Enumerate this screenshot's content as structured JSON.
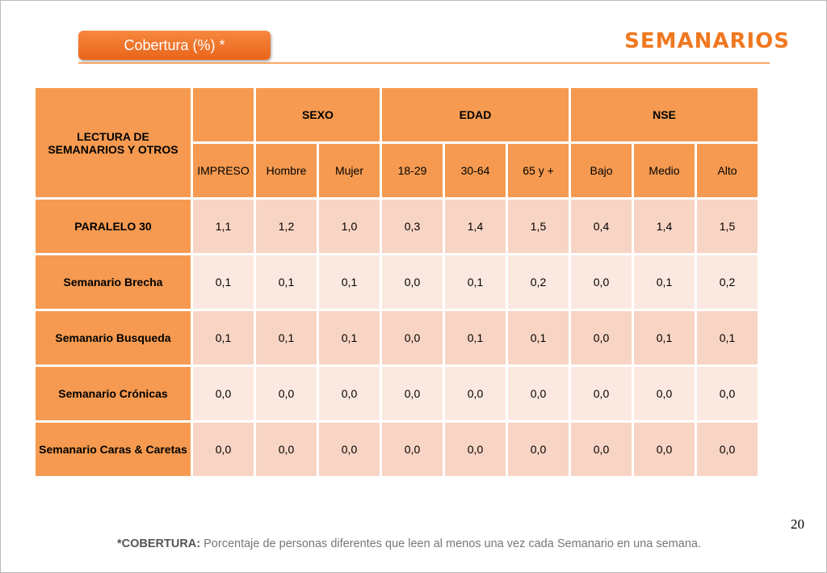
{
  "badge": "Cobertura (%) *",
  "title": "SEMANARIOS",
  "table": {
    "corner": "LECTURA DE SEMANARIOS Y OTROS",
    "groups": [
      "SEXO",
      "EDAD",
      "NSE"
    ],
    "columns": [
      "IMPRESO",
      "Hombre",
      "Mujer",
      "18-29",
      "30-64",
      "65 y +",
      "Bajo",
      "Medio",
      "Alto"
    ],
    "rows": [
      {
        "label": "PARALELO 30",
        "values": [
          "1,1",
          "1,2",
          "1,0",
          "0,3",
          "1,4",
          "1,5",
          "0,4",
          "1,4",
          "1,5"
        ]
      },
      {
        "label": "Semanario Brecha",
        "values": [
          "0,1",
          "0,1",
          "0,1",
          "0,0",
          "0,1",
          "0,2",
          "0,0",
          "0,1",
          "0,2"
        ]
      },
      {
        "label": "Semanario Busqueda",
        "values": [
          "0,1",
          "0,1",
          "0,1",
          "0,0",
          "0,1",
          "0,1",
          "0,0",
          "0,1",
          "0,1"
        ]
      },
      {
        "label": "Semanario Crónicas",
        "values": [
          "0,0",
          "0,0",
          "0,0",
          "0,0",
          "0,0",
          "0,0",
          "0,0",
          "0,0",
          "0,0"
        ]
      },
      {
        "label": "Semanario Caras & Caretas",
        "values": [
          "0,0",
          "0,0",
          "0,0",
          "0,0",
          "0,0",
          "0,0",
          "0,0",
          "0,0",
          "0,0"
        ]
      }
    ]
  },
  "page_number": "20",
  "footnote": {
    "label": "*COBERTURA:",
    "text": " Porcentaje de personas diferentes que leen al menos una vez cada Semanario en una semana."
  },
  "colors": {
    "accent": "#f07820",
    "header_fill": "#f59a50",
    "cell_dark": "#f8d4c4",
    "cell_light": "#fbe9e1"
  }
}
